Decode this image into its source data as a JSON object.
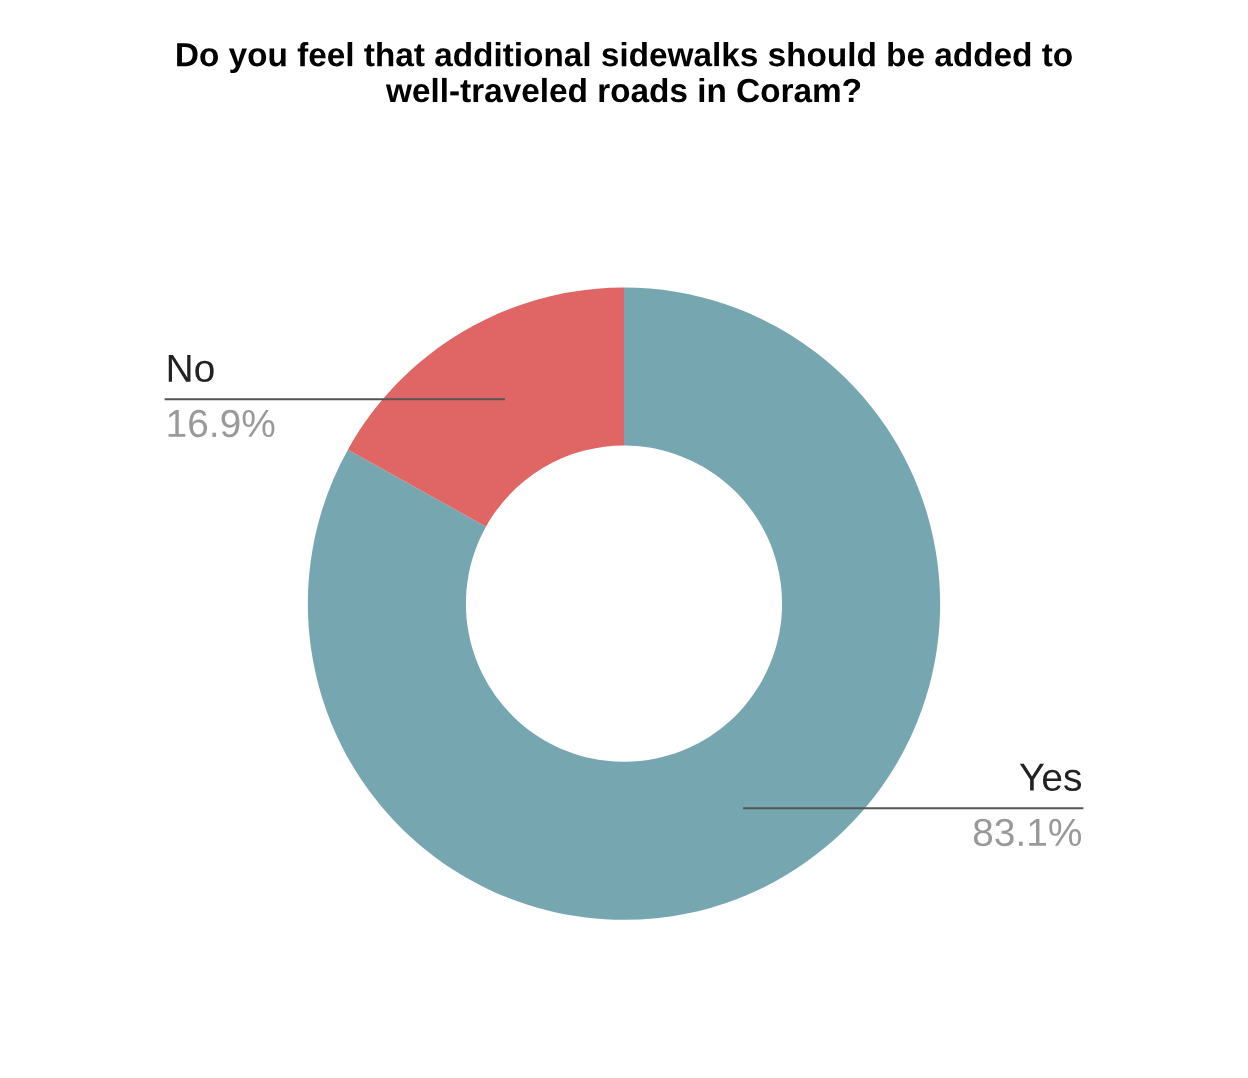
{
  "chart_data": {
    "type": "donut",
    "title": "Do you feel that additional sidewalks should be added to\nwell-traveled roads in Coram?",
    "categories": [
      "Yes",
      "No"
    ],
    "values": [
      83.1,
      16.9
    ],
    "colors": [
      "#76a7b1",
      "#e06666"
    ],
    "value_labels": [
      "83.1%",
      "16.9%"
    ],
    "legend": false
  }
}
